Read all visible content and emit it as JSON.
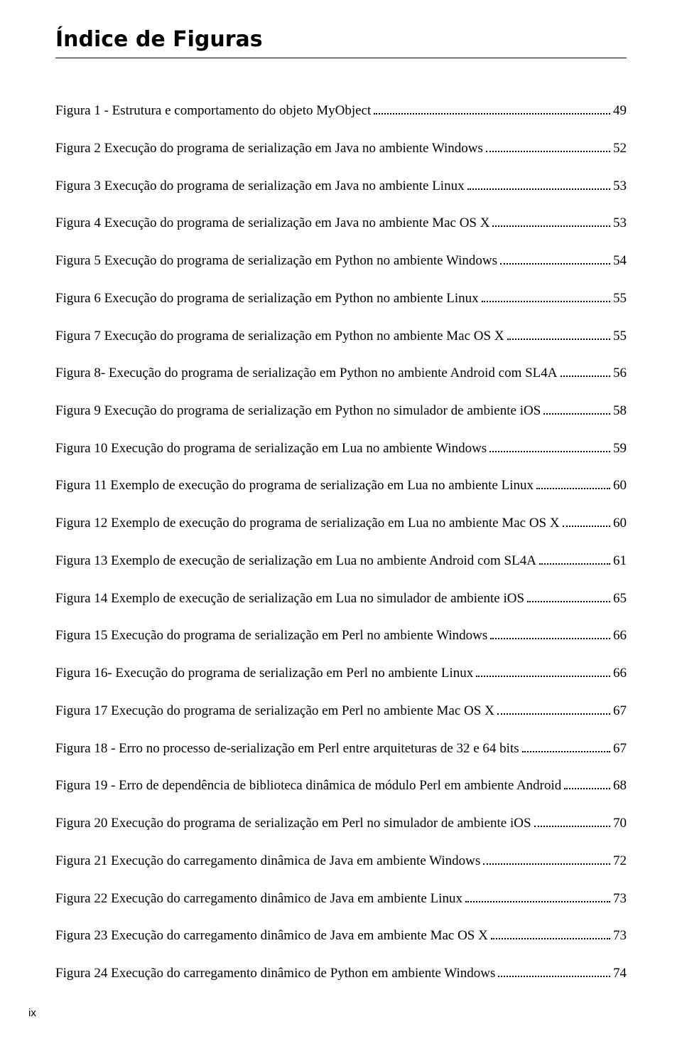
{
  "title": "Índice de Figuras",
  "page_number_label": "ix",
  "entries": [
    {
      "label": "Figura 1 - Estrutura e comportamento do objeto MyObject",
      "page": "49"
    },
    {
      "label": "Figura 2 Execução do programa de serialização em Java no ambiente Windows",
      "page": "52"
    },
    {
      "label": "Figura 3 Execução do programa de serialização em Java no ambiente Linux",
      "page": "53"
    },
    {
      "label": "Figura 4 Execução do programa de serialização em Java no ambiente Mac OS X",
      "page": "53"
    },
    {
      "label": "Figura 5 Execução do programa de serialização em Python no ambiente Windows",
      "page": "54"
    },
    {
      "label": "Figura 6 Execução do programa de serialização em Python no ambiente Linux",
      "page": "55"
    },
    {
      "label": "Figura 7 Execução do programa de serialização em Python no ambiente Mac OS X",
      "page": "55"
    },
    {
      "label": "Figura 8- Execução do programa de serialização em Python no ambiente Android com SL4A",
      "page": "56"
    },
    {
      "label": "Figura 9 Execução do programa de serialização em Python no simulador de ambiente iOS",
      "page": "58"
    },
    {
      "label": "Figura 10 Execução do programa de serialização em Lua no ambiente Windows",
      "page": "59"
    },
    {
      "label": "Figura 11 Exemplo de execução do programa de serialização em Lua no ambiente Linux",
      "page": "60"
    },
    {
      "label": "Figura 12 Exemplo de execução do programa de serialização em Lua no ambiente Mac OS X",
      "page": "60"
    },
    {
      "label": "Figura 13 Exemplo de execução de serialização em Lua no ambiente Android com SL4A",
      "page": "61"
    },
    {
      "label": "Figura 14 Exemplo de execução de serialização em Lua no simulador de ambiente iOS",
      "page": "65"
    },
    {
      "label": "Figura 15 Execução do programa de serialização em Perl no ambiente Windows",
      "page": "66"
    },
    {
      "label": "Figura 16- Execução do programa de serialização em Perl no ambiente Linux",
      "page": "66"
    },
    {
      "label": "Figura 17 Execução do programa de serialização em Perl no ambiente Mac OS X",
      "page": "67"
    },
    {
      "label": "Figura 18 - Erro no processo de-serialização em Perl entre arquiteturas de 32 e 64 bits",
      "page": "67"
    },
    {
      "label": "Figura 19 - Erro de dependência de biblioteca dinâmica de módulo Perl em ambiente Android",
      "page": "68"
    },
    {
      "label": "Figura 20 Execução do programa de serialização em Perl no simulador de ambiente iOS",
      "page": "70"
    },
    {
      "label": "Figura 21 Execução do carregamento dinâmica de Java em ambiente Windows",
      "page": "72"
    },
    {
      "label": "Figura 22 Execução do carregamento dinâmico de Java em ambiente Linux",
      "page": "73"
    },
    {
      "label": "Figura 23 Execução do carregamento dinâmico de Java em ambiente Mac OS X",
      "page": "73"
    },
    {
      "label": "Figura 24 Execução do carregamento dinâmico de Python em ambiente Windows",
      "page": "74"
    }
  ]
}
